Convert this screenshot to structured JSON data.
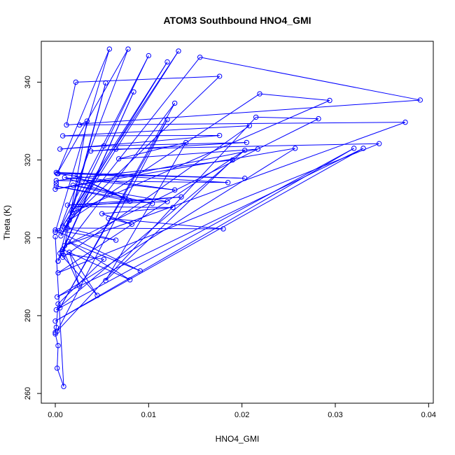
{
  "chart_data": {
    "type": "line",
    "title": "ATOM3 Southbound HNO4_GMI",
    "xlabel": "HNO4_GMI",
    "ylabel": "Theta (K)",
    "xlim": [
      -0.0015,
      0.0405
    ],
    "ylim": [
      257.5,
      350.5
    ],
    "xticks": [
      0.0,
      0.01,
      0.02,
      0.03,
      0.04
    ],
    "xtick_labels": [
      "0.00",
      "0.01",
      "0.02",
      "0.03",
      "0.04"
    ],
    "yticks": [
      260,
      280,
      300,
      320,
      340
    ],
    "yticks_labels": [
      "260",
      "280",
      "300",
      "320",
      "340"
    ],
    "grid": false,
    "legend": "none",
    "series_color": "#0000ff",
    "marker": "open-circle",
    "points": [
      {
        "x": 0.0,
        "y": 301.5
      },
      {
        "x": 0.0058,
        "y": 348.5
      },
      {
        "x": 0.0002,
        "y": 316.5
      },
      {
        "x": 0.0078,
        "y": 348.5
      },
      {
        "x": 0.0004,
        "y": 301.8
      },
      {
        "x": 0.01,
        "y": 346.8
      },
      {
        "x": 0.0006,
        "y": 300.5
      },
      {
        "x": 0.0132,
        "y": 348.0
      },
      {
        "x": 0.0008,
        "y": 303.0
      },
      {
        "x": 0.012,
        "y": 345.2
      },
      {
        "x": 0.001,
        "y": 302.5
      },
      {
        "x": 0.0155,
        "y": 346.4
      },
      {
        "x": 0.0391,
        "y": 335.4
      },
      {
        "x": 0.0012,
        "y": 329.0
      },
      {
        "x": 0.0022,
        "y": 340.0
      },
      {
        "x": 0.0176,
        "y": 341.5
      },
      {
        "x": 0.0015,
        "y": 304.5
      },
      {
        "x": 0.0219,
        "y": 337.0
      },
      {
        "x": 0.0294,
        "y": 335.3
      },
      {
        "x": 0.0018,
        "y": 306.5
      },
      {
        "x": 0.0054,
        "y": 339.8
      },
      {
        "x": 0.0003,
        "y": 294.0
      },
      {
        "x": 0.0084,
        "y": 337.5
      },
      {
        "x": 0.0007,
        "y": 296.5
      },
      {
        "x": 0.0128,
        "y": 334.6
      },
      {
        "x": 0.0005,
        "y": 282.0
      },
      {
        "x": 0.012,
        "y": 330.4
      },
      {
        "x": 0.0002,
        "y": 276.0
      },
      {
        "x": 0.0215,
        "y": 331.0
      },
      {
        "x": 0.0282,
        "y": 330.6
      },
      {
        "x": 0.001,
        "y": 298.0
      },
      {
        "x": 0.0375,
        "y": 329.7
      },
      {
        "x": 0.0026,
        "y": 329.0
      },
      {
        "x": 0.0034,
        "y": 330.0
      },
      {
        "x": 0.0008,
        "y": 295.0
      },
      {
        "x": 0.0208,
        "y": 328.8
      },
      {
        "x": 0.0008,
        "y": 326.2
      },
      {
        "x": 0.0176,
        "y": 326.3
      },
      {
        "x": 0.0005,
        "y": 322.8
      },
      {
        "x": 0.0052,
        "y": 323.6
      },
      {
        "x": 0.0205,
        "y": 324.5
      },
      {
        "x": 0.0038,
        "y": 322.3
      },
      {
        "x": 0.0065,
        "y": 322.8
      },
      {
        "x": 0.0347,
        "y": 324.2
      },
      {
        "x": 0.0203,
        "y": 322.5
      },
      {
        "x": 0.032,
        "y": 323.0
      },
      {
        "x": 0.033,
        "y": 323.0
      },
      {
        "x": 0.0257,
        "y": 323.0
      },
      {
        "x": 0.0,
        "y": 312.5
      },
      {
        "x": 0.0217,
        "y": 322.8
      },
      {
        "x": 0.0068,
        "y": 320.3
      },
      {
        "x": 0.014,
        "y": 324.5
      },
      {
        "x": 0.019,
        "y": 320.0
      },
      {
        "x": 0.0001,
        "y": 314.7
      },
      {
        "x": 0.0001,
        "y": 316.8
      },
      {
        "x": 0.0003,
        "y": 316.5
      },
      {
        "x": 0.001,
        "y": 315.5
      },
      {
        "x": 0.002,
        "y": 316.0
      },
      {
        "x": 0.0001,
        "y": 313.3
      },
      {
        "x": 0.0019,
        "y": 313.5
      },
      {
        "x": 0.0185,
        "y": 314.2
      },
      {
        "x": 0.0203,
        "y": 315.3
      },
      {
        "x": 0.0001,
        "y": 314.0
      },
      {
        "x": 0.0128,
        "y": 312.3
      },
      {
        "x": 0.0075,
        "y": 310.2
      },
      {
        "x": 0.008,
        "y": 309.4
      },
      {
        "x": 0.0104,
        "y": 308.8
      },
      {
        "x": 0.012,
        "y": 309.3
      },
      {
        "x": 0.0013,
        "y": 308.4
      },
      {
        "x": 0.005,
        "y": 306.2
      },
      {
        "x": 0.0126,
        "y": 307.8
      },
      {
        "x": 0.002,
        "y": 308.0
      },
      {
        "x": 0.0135,
        "y": 310.5
      },
      {
        "x": 0.0057,
        "y": 305.0
      },
      {
        "x": 0.0082,
        "y": 303.5
      },
      {
        "x": 0.0013,
        "y": 302.5
      },
      {
        "x": 0.0,
        "y": 302.0
      },
      {
        "x": 0.0,
        "y": 300.3
      },
      {
        "x": 0.018,
        "y": 302.3
      },
      {
        "x": 0.0065,
        "y": 299.4
      },
      {
        "x": 0.0014,
        "y": 299.0
      },
      {
        "x": 0.0008,
        "y": 297.0
      },
      {
        "x": 0.0015,
        "y": 296.3
      },
      {
        "x": 0.0005,
        "y": 296.0
      },
      {
        "x": 0.0052,
        "y": 294.5
      },
      {
        "x": 0.0003,
        "y": 294.0
      },
      {
        "x": 0.0091,
        "y": 291.5
      },
      {
        "x": 0.0003,
        "y": 291.0
      },
      {
        "x": 0.0054,
        "y": 289.0
      },
      {
        "x": 0.008,
        "y": 289.2
      },
      {
        "x": 0.0026,
        "y": 287.6
      },
      {
        "x": 0.0045,
        "y": 285.2
      },
      {
        "x": 0.0002,
        "y": 284.8
      },
      {
        "x": 0.0003,
        "y": 283.0
      },
      {
        "x": 0.0001,
        "y": 281.5
      },
      {
        "x": 0.0,
        "y": 278.6
      },
      {
        "x": 0.0001,
        "y": 277.0
      },
      {
        "x": 0.0,
        "y": 275.7
      },
      {
        "x": 0.0,
        "y": 275.3
      },
      {
        "x": 0.0003,
        "y": 272.3
      },
      {
        "x": 0.0002,
        "y": 266.5
      },
      {
        "x": 0.0009,
        "y": 261.8
      }
    ],
    "path": [
      [
        0.0,
        301.5
      ],
      [
        0.0058,
        348.5
      ],
      [
        0.0002,
        316.5
      ],
      [
        0.0078,
        348.5
      ],
      [
        0.0004,
        301.8
      ],
      [
        0.01,
        346.8
      ],
      [
        0.0006,
        300.5
      ],
      [
        0.0132,
        348.0
      ],
      [
        0.0008,
        303.0
      ],
      [
        0.012,
        345.2
      ],
      [
        0.001,
        302.5
      ],
      [
        0.0155,
        346.4
      ],
      [
        0.0391,
        335.4
      ],
      [
        0.0012,
        329.0
      ],
      [
        0.0022,
        340.0
      ],
      [
        0.0176,
        341.5
      ],
      [
        0.0015,
        304.5
      ],
      [
        0.0219,
        337.0
      ],
      [
        0.0294,
        335.3
      ],
      [
        0.0018,
        306.5
      ],
      [
        0.0054,
        339.8
      ],
      [
        0.0003,
        294.0
      ],
      [
        0.0084,
        337.5
      ],
      [
        0.0007,
        296.5
      ],
      [
        0.0128,
        334.6
      ],
      [
        0.0005,
        282.0
      ],
      [
        0.012,
        330.4
      ],
      [
        0.0002,
        276.0
      ],
      [
        0.0215,
        331.0
      ],
      [
        0.0282,
        330.6
      ],
      [
        0.001,
        298.0
      ],
      [
        0.0375,
        329.7
      ],
      [
        0.0026,
        329.0
      ],
      [
        0.0034,
        330.0
      ],
      [
        0.0008,
        295.0
      ],
      [
        0.0208,
        328.8
      ],
      [
        0.0008,
        326.2
      ],
      [
        0.0176,
        326.3
      ],
      [
        0.0005,
        322.8
      ],
      [
        0.0052,
        323.6
      ],
      [
        0.0205,
        324.5
      ],
      [
        0.0038,
        322.3
      ],
      [
        0.0065,
        322.8
      ],
      [
        0.0347,
        324.2
      ],
      [
        0.0003,
        291.0
      ],
      [
        0.0203,
        322.5
      ],
      [
        0.0001,
        281.5
      ],
      [
        0.032,
        323.0
      ],
      [
        0.0,
        278.6
      ],
      [
        0.033,
        323.0
      ],
      [
        0.0002,
        284.8
      ],
      [
        0.0257,
        323.0
      ],
      [
        0.0,
        312.5
      ],
      [
        0.0217,
        322.8
      ],
      [
        0.0068,
        320.3
      ],
      [
        0.014,
        324.5
      ],
      [
        0.0054,
        289.0
      ],
      [
        0.019,
        320.0
      ],
      [
        0.0001,
        314.7
      ],
      [
        0.0185,
        314.2
      ],
      [
        0.0001,
        316.8
      ],
      [
        0.0203,
        315.3
      ],
      [
        0.0003,
        316.5
      ],
      [
        0.0128,
        312.3
      ],
      [
        0.001,
        315.5
      ],
      [
        0.0075,
        310.2
      ],
      [
        0.002,
        316.0
      ],
      [
        0.008,
        309.4
      ],
      [
        0.0001,
        313.3
      ],
      [
        0.0104,
        308.8
      ],
      [
        0.0019,
        313.5
      ],
      [
        0.012,
        309.3
      ],
      [
        0.0013,
        308.4
      ],
      [
        0.0135,
        310.5
      ],
      [
        0.002,
        308.0
      ],
      [
        0.0126,
        307.8
      ],
      [
        0.005,
        306.2
      ],
      [
        0.0082,
        303.5
      ],
      [
        0.0057,
        305.0
      ],
      [
        0.018,
        302.3
      ],
      [
        0.0013,
        302.5
      ],
      [
        0.0065,
        299.4
      ],
      [
        0.0,
        302.0
      ],
      [
        0.0091,
        291.5
      ],
      [
        0.0014,
        299.0
      ],
      [
        0.008,
        289.2
      ],
      [
        0.0008,
        297.0
      ],
      [
        0.0026,
        287.6
      ],
      [
        0.0015,
        296.3
      ],
      [
        0.0045,
        285.2
      ],
      [
        0.0005,
        296.0
      ],
      [
        0.0052,
        294.5
      ],
      [
        0.0003,
        283.0
      ],
      [
        0.0001,
        277.0
      ],
      [
        0.0,
        275.7
      ],
      [
        0.0,
        275.3
      ],
      [
        0.0003,
        272.3
      ],
      [
        0.0002,
        266.5
      ],
      [
        0.0009,
        261.8
      ],
      [
        0.0,
        300.3
      ]
    ]
  }
}
